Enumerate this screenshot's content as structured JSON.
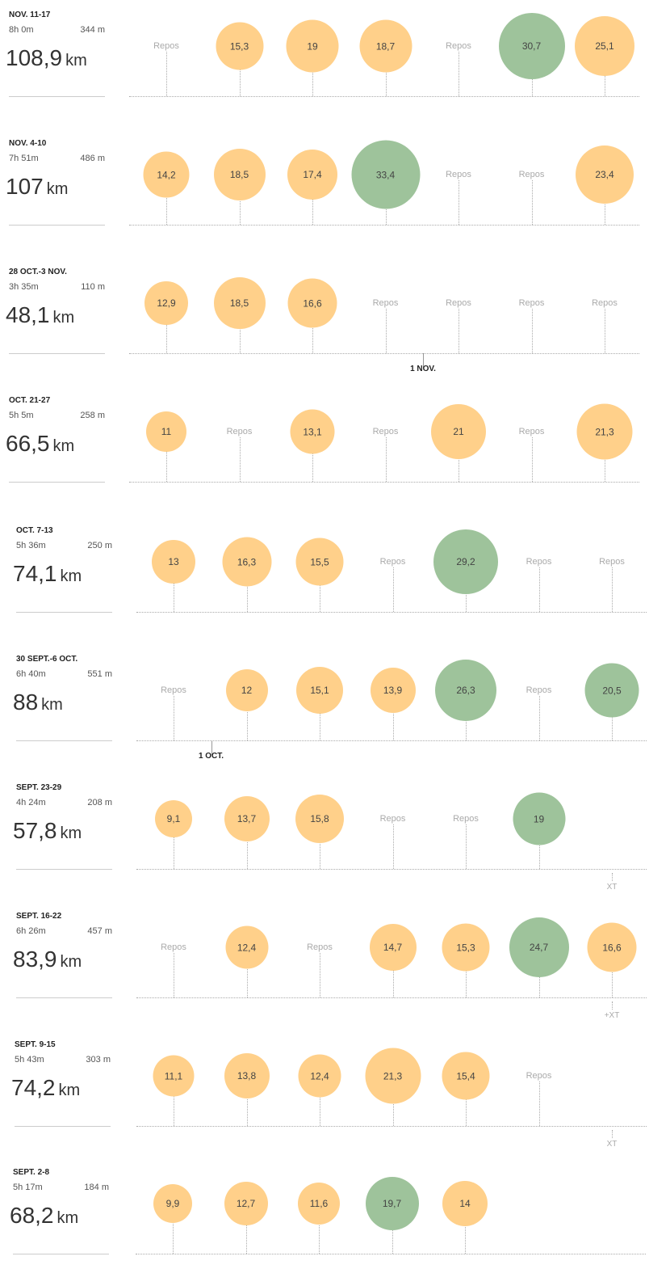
{
  "colors": {
    "easy": "#ffd08a",
    "long": "#9ec39b",
    "rest_text": "#aaaaaa"
  },
  "unit": "km",
  "weeks": [
    {
      "label": "NOV. 11-17",
      "time": "8h 0m",
      "elevation": "344 m",
      "distance": "108,9",
      "days": [
        {
          "type": "rest",
          "label": "Repos"
        },
        {
          "type": "easy",
          "value": "15,3"
        },
        {
          "type": "easy",
          "value": "19"
        },
        {
          "type": "easy",
          "value": "18,7"
        },
        {
          "type": "rest",
          "label": "Repos"
        },
        {
          "type": "long",
          "value": "30,7"
        },
        {
          "type": "easy",
          "value": "25,1"
        }
      ]
    },
    {
      "label": "NOV. 4-10",
      "time": "7h 51m",
      "elevation": "486 m",
      "distance": "107",
      "days": [
        {
          "type": "easy",
          "value": "14,2"
        },
        {
          "type": "easy",
          "value": "18,5"
        },
        {
          "type": "easy",
          "value": "17,4"
        },
        {
          "type": "long",
          "value": "33,4"
        },
        {
          "type": "rest",
          "label": "Repos"
        },
        {
          "type": "rest",
          "label": "Repos"
        },
        {
          "type": "easy",
          "value": "23,4"
        }
      ]
    },
    {
      "label": "28 OCT.-3 NOV.",
      "time": "3h 35m",
      "elevation": "110 m",
      "distance": "48,1",
      "marker": {
        "label": "1 NOV.",
        "day_index": 4
      },
      "days": [
        {
          "type": "easy",
          "value": "12,9"
        },
        {
          "type": "easy",
          "value": "18,5"
        },
        {
          "type": "easy",
          "value": "16,6"
        },
        {
          "type": "rest",
          "label": "Repos"
        },
        {
          "type": "rest",
          "label": "Repos"
        },
        {
          "type": "rest",
          "label": "Repos"
        },
        {
          "type": "rest",
          "label": "Repos"
        }
      ]
    },
    {
      "label": "OCT. 21-27",
      "time": "5h 5m",
      "elevation": "258 m",
      "distance": "66,5",
      "days": [
        {
          "type": "easy",
          "value": "11"
        },
        {
          "type": "rest",
          "label": "Repos"
        },
        {
          "type": "easy",
          "value": "13,1"
        },
        {
          "type": "rest",
          "label": "Repos"
        },
        {
          "type": "easy",
          "value": "21"
        },
        {
          "type": "rest",
          "label": "Repos"
        },
        {
          "type": "easy",
          "value": "21,3"
        }
      ]
    },
    {
      "label": "OCT. 7-13",
      "time": "5h 36m",
      "elevation": "250 m",
      "distance": "74,1",
      "days": [
        {
          "type": "easy",
          "value": "13"
        },
        {
          "type": "easy",
          "value": "16,3"
        },
        {
          "type": "easy",
          "value": "15,5"
        },
        {
          "type": "rest",
          "label": "Repos"
        },
        {
          "type": "long",
          "value": "29,2"
        },
        {
          "type": "rest",
          "label": "Repos"
        },
        {
          "type": "rest",
          "label": "Repos"
        }
      ]
    },
    {
      "label": "30 SEPT.-6 OCT.",
      "time": "6h 40m",
      "elevation": "551 m",
      "distance": "88",
      "marker": {
        "label": "1 OCT.",
        "day_index": 1
      },
      "days": [
        {
          "type": "rest",
          "label": "Repos"
        },
        {
          "type": "easy",
          "value": "12"
        },
        {
          "type": "easy",
          "value": "15,1"
        },
        {
          "type": "easy",
          "value": "13,9"
        },
        {
          "type": "long",
          "value": "26,3"
        },
        {
          "type": "rest",
          "label": "Repos"
        },
        {
          "type": "long",
          "value": "20,5"
        }
      ]
    },
    {
      "label": "SEPT. 23-29",
      "time": "4h 24m",
      "elevation": "208 m",
      "distance": "57,8",
      "days": [
        {
          "type": "easy",
          "value": "9,1"
        },
        {
          "type": "easy",
          "value": "13,7"
        },
        {
          "type": "easy",
          "value": "15,8"
        },
        {
          "type": "rest",
          "label": "Repos"
        },
        {
          "type": "rest",
          "label": "Repos"
        },
        {
          "type": "long",
          "value": "19"
        },
        {
          "type": "empty",
          "xt": "XT"
        }
      ]
    },
    {
      "label": "SEPT. 16-22",
      "time": "6h 26m",
      "elevation": "457 m",
      "distance": "83,9",
      "days": [
        {
          "type": "rest",
          "label": "Repos"
        },
        {
          "type": "easy",
          "value": "12,4"
        },
        {
          "type": "rest",
          "label": "Repos"
        },
        {
          "type": "easy",
          "value": "14,7"
        },
        {
          "type": "easy",
          "value": "15,3"
        },
        {
          "type": "long",
          "value": "24,7"
        },
        {
          "type": "easy",
          "value": "16,6",
          "xt": "+XT"
        }
      ]
    },
    {
      "label": "SEPT. 9-15",
      "time": "5h 43m",
      "elevation": "303 m",
      "distance": "74,2",
      "days": [
        {
          "type": "easy",
          "value": "11,1"
        },
        {
          "type": "easy",
          "value": "13,8"
        },
        {
          "type": "easy",
          "value": "12,4"
        },
        {
          "type": "easy",
          "value": "21,3"
        },
        {
          "type": "easy",
          "value": "15,4"
        },
        {
          "type": "rest",
          "label": "Repos"
        },
        {
          "type": "empty",
          "xt": "XT"
        }
      ]
    },
    {
      "label": "SEPT. 2-8",
      "time": "5h 17m",
      "elevation": "184 m",
      "distance": "68,2",
      "days": [
        {
          "type": "easy",
          "value": "9,9"
        },
        {
          "type": "easy",
          "value": "12,7"
        },
        {
          "type": "easy",
          "value": "11,6"
        },
        {
          "type": "long",
          "value": "19,7"
        },
        {
          "type": "easy",
          "value": "14"
        },
        {
          "type": "empty"
        },
        {
          "type": "empty"
        }
      ]
    }
  ]
}
